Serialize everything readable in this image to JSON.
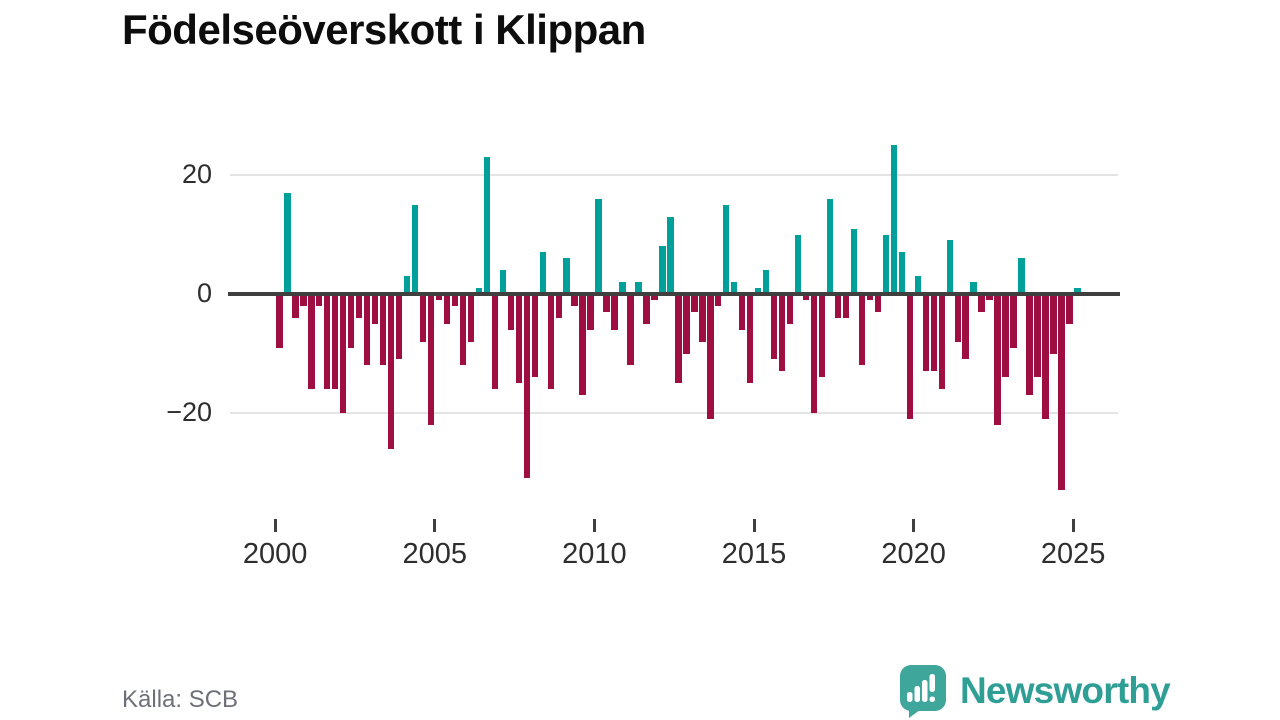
{
  "title": "Födelseöverskott i Klippan",
  "source": "Källa: SCB",
  "branding": {
    "name": "Newsworthy"
  },
  "colors": {
    "positive": "#00A09A",
    "negative": "#9E0E40",
    "grid": "#e4e4e4",
    "axis": "#3f3f3f",
    "text": "#2e2e2e",
    "muted": "#6e7079",
    "brand_bubble": "#3FA69C",
    "brand_text": "#2f9e95"
  },
  "y_axis": {
    "labels": [
      "20",
      "0",
      "−20"
    ],
    "values": [
      20,
      0,
      -20
    ]
  },
  "x_axis": {
    "labels": [
      "2000",
      "2005",
      "2010",
      "2015",
      "2020",
      "2025"
    ],
    "years": [
      2000,
      2005,
      2010,
      2015,
      2020,
      2025
    ]
  },
  "chart_data": {
    "type": "bar",
    "title": "Födelseöverskott i Klippan",
    "xlabel": "",
    "ylabel": "",
    "frequency": "quarterly",
    "start_period": "2000-Q1",
    "end_period": "2025-Q1",
    "ylim": [
      -35,
      27
    ],
    "grid": "horizontal",
    "legend": "none",
    "positive_color": "#00A09A",
    "negative_color": "#9E0E40",
    "values": [
      -9,
      17,
      -4,
      -2,
      -16,
      -2,
      -16,
      -16,
      -20,
      -9,
      -4,
      -12,
      -5,
      -12,
      -26,
      -11,
      3,
      15,
      -8,
      -22,
      -1,
      -5,
      -2,
      -12,
      -8,
      1,
      23,
      -16,
      4,
      -6,
      -15,
      -31,
      -14,
      7,
      -16,
      -4,
      6,
      -2,
      -17,
      -6,
      16,
      -3,
      -6,
      2,
      -12,
      2,
      -5,
      -1,
      8,
      13,
      -15,
      -10,
      -3,
      -8,
      -21,
      -2,
      15,
      2,
      -6,
      -15,
      1,
      4,
      -11,
      -13,
      -5,
      10,
      -1,
      -20,
      -14,
      16,
      -4,
      -4,
      11,
      -12,
      -1,
      -3,
      10,
      25,
      7,
      -21,
      3,
      -13,
      -13,
      -16,
      9,
      -8,
      -11,
      2,
      -3,
      -1,
      -22,
      -14,
      -9,
      6,
      -17,
      -14,
      -21,
      -10,
      -33,
      -5,
      1
    ]
  }
}
